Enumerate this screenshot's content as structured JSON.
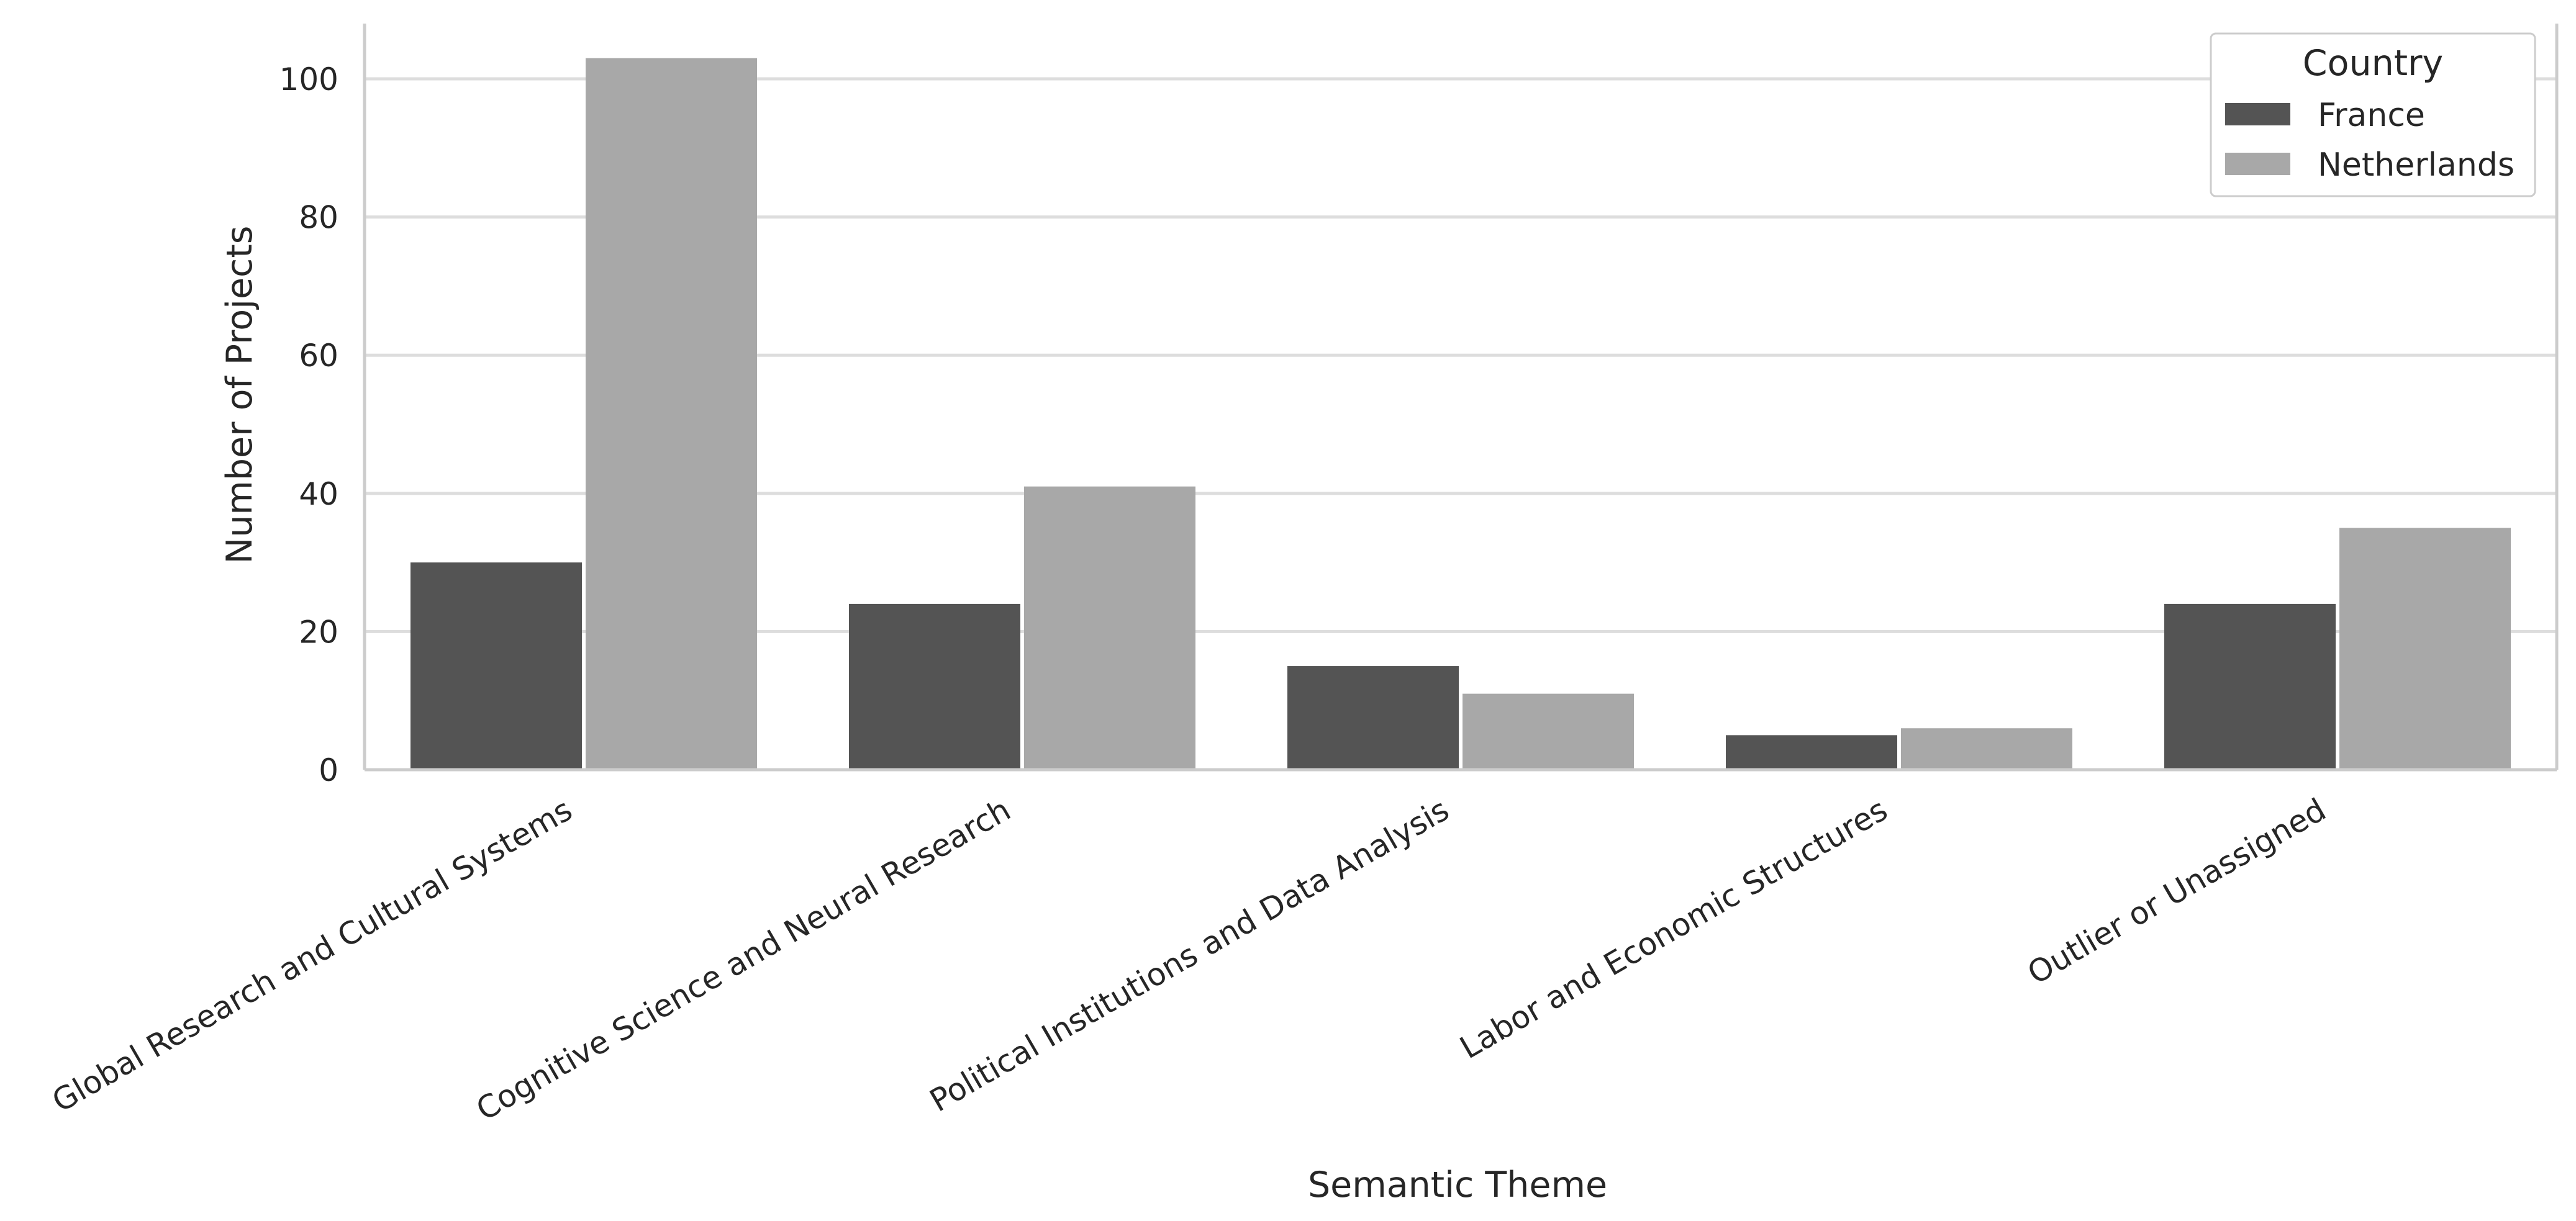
{
  "chart_data": {
    "type": "bar",
    "title": "",
    "xlabel": "Semantic Theme",
    "ylabel": "Number of Projects",
    "categories": [
      "Global Research and Cultural Systems",
      "Cognitive Science and Neural Research",
      "Political Institutions and Data Analysis",
      "Labor and Economic Structures",
      "Outlier or Unassigned"
    ],
    "series": [
      {
        "name": "France",
        "color": "#545454",
        "values": [
          30,
          24,
          15,
          5,
          24
        ]
      },
      {
        "name": "Netherlands",
        "color": "#a8a8a8",
        "values": [
          103,
          41,
          11,
          6,
          35
        ]
      }
    ],
    "ylim": [
      0,
      108
    ],
    "yticks": [
      0,
      20,
      40,
      60,
      80,
      100
    ],
    "grid": "horizontal",
    "legend": {
      "title": "Country",
      "placement": "top-right"
    },
    "colors": {
      "grid": "#dddddd",
      "axis": "#cccccc",
      "text": "#262626"
    }
  }
}
